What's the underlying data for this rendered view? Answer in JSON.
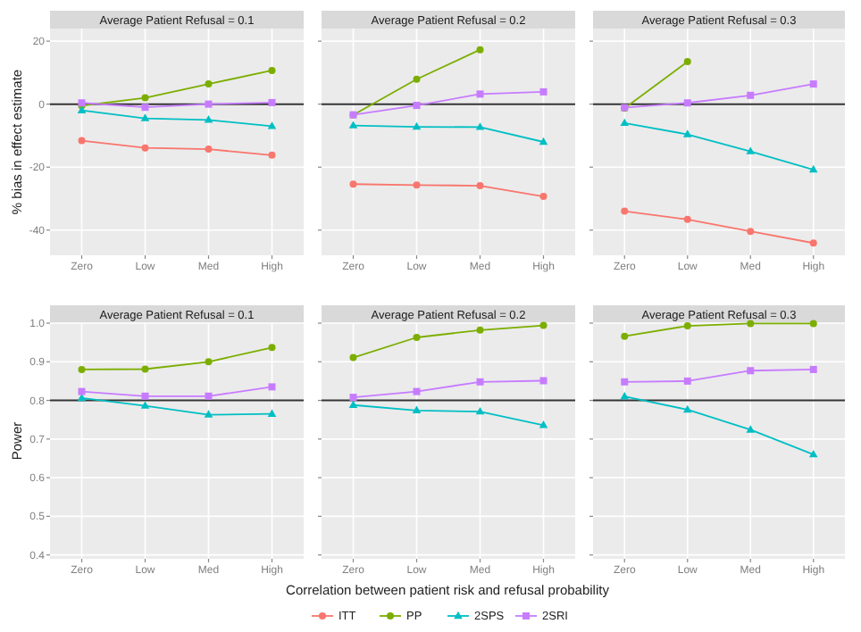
{
  "chart_data": [
    {
      "type": "line",
      "title": "Average Patient Refusal = 0.1",
      "ylabel": "% bias in effect estimate",
      "categories": [
        "Zero",
        "Low",
        "Med",
        "High"
      ],
      "ylim": [
        -48,
        24
      ],
      "yticks": [
        -40,
        -20,
        0,
        20
      ],
      "grid": true,
      "ref_lines": [
        {
          "axis": "y",
          "value": 0,
          "color": "#333333"
        }
      ],
      "series": [
        {
          "color": "#f8766d",
          "marker": "circle",
          "values": [
            -11.6,
            -13.9,
            -14.3,
            -16.2
          ]
        },
        {
          "color": "#7cae00",
          "marker": "circle",
          "values": [
            -0.5,
            2,
            6.4,
            10.7
          ]
        },
        {
          "color": "#00bfc4",
          "marker": "triangle",
          "values": [
            -2,
            -4.5,
            -5,
            -7
          ]
        },
        {
          "color": "#c77cff",
          "marker": "square",
          "values": [
            0.4,
            -1,
            0,
            0.5
          ]
        }
      ]
    },
    {
      "type": "line",
      "title": "Average Patient Refusal = 0.2",
      "categories": [
        "Zero",
        "Low",
        "Med",
        "High"
      ],
      "ylim": [
        -48,
        24
      ],
      "yticks": [
        -40,
        -20,
        0,
        20
      ],
      "grid": true,
      "tick_labels": "x",
      "ref_lines": [
        {
          "axis": "y",
          "value": 0,
          "color": "#333333"
        }
      ],
      "series": [
        {
          "color": "#f8766d",
          "marker": "circle",
          "values": [
            -25.4,
            -25.7,
            -25.9,
            -29.3
          ]
        },
        {
          "color": "#7cae00",
          "marker": "circle",
          "values": [
            -3.4,
            7.9,
            17.3,
            null
          ]
        },
        {
          "color": "#00bfc4",
          "marker": "triangle",
          "values": [
            -6.8,
            -7.2,
            -7.3,
            -12
          ]
        },
        {
          "color": "#c77cff",
          "marker": "square",
          "values": [
            -3.4,
            -0.4,
            3.2,
            3.9
          ]
        }
      ]
    },
    {
      "type": "line",
      "title": "Average Patient Refusal = 0.3",
      "categories": [
        "Zero",
        "Low",
        "Med",
        "High"
      ],
      "ylim": [
        -48,
        24
      ],
      "yticks": [
        -40,
        -20,
        0,
        20
      ],
      "grid": true,
      "tick_labels": "x",
      "ref_lines": [
        {
          "axis": "y",
          "value": 0,
          "color": "#333333"
        }
      ],
      "series": [
        {
          "color": "#f8766d",
          "marker": "circle",
          "values": [
            -34,
            -36.6,
            -40.4,
            -44.1
          ]
        },
        {
          "color": "#7cae00",
          "marker": "circle",
          "values": [
            -1.3,
            13.5,
            null,
            null
          ]
        },
        {
          "color": "#00bfc4",
          "marker": "triangle",
          "values": [
            -6,
            -9.6,
            -15,
            -20.8
          ]
        },
        {
          "color": "#c77cff",
          "marker": "square",
          "values": [
            -1.1,
            0.4,
            2.8,
            6.4
          ]
        }
      ]
    },
    {
      "type": "line",
      "title": "Average Patient Refusal = 0.1",
      "ylabel": "Power",
      "categories": [
        "Zero",
        "Low",
        "Med",
        "High"
      ],
      "ylim": [
        0.39,
        1.0
      ],
      "yticks": [
        {
          "value": 0.4,
          "label": "0.4"
        },
        {
          "value": 0.5,
          "label": "0.5"
        },
        {
          "value": 0.6,
          "label": "0.6"
        },
        {
          "value": 0.7,
          "label": "0.7"
        },
        {
          "value": 0.8,
          "label": "0.8"
        },
        {
          "value": 0.9,
          "label": "0.9"
        },
        {
          "value": 1.0,
          "label": "1.0"
        }
      ],
      "grid": true,
      "ref_lines": [
        {
          "axis": "y",
          "value": 0.8,
          "color": "#333333"
        }
      ],
      "series": [
        {
          "color": "#7cae00",
          "marker": "circle",
          "values": [
            0.88,
            0.881,
            0.9,
            0.937
          ]
        },
        {
          "color": "#00bfc4",
          "marker": "triangle",
          "values": [
            0.806,
            0.786,
            0.763,
            0.765
          ]
        },
        {
          "color": "#c77cff",
          "marker": "square",
          "values": [
            0.823,
            0.811,
            0.811,
            0.835
          ]
        }
      ]
    },
    {
      "type": "line",
      "title": "Average Patient Refusal = 0.2",
      "xlabel": "Correlation between patient risk and refusal probability",
      "categories": [
        "Zero",
        "Low",
        "Med",
        "High"
      ],
      "ylim": [
        0.39,
        1.0
      ],
      "yticks": [
        0.4,
        0.5,
        0.6,
        0.7,
        0.8,
        0.9,
        1.0
      ],
      "grid": true,
      "tick_labels": "x",
      "legend": "bottom",
      "ref_lines": [
        {
          "axis": "y",
          "value": 0.8,
          "color": "#333333"
        }
      ],
      "series": [
        {
          "name": "ITT",
          "color": "#f8766d",
          "marker": "circle",
          "values": [
            null,
            null,
            null,
            null
          ]
        },
        {
          "name": "PP",
          "color": "#7cae00",
          "marker": "circle",
          "values": [
            0.911,
            0.963,
            0.982,
            0.994
          ]
        },
        {
          "name": "2SPS",
          "color": "#00bfc4",
          "marker": "triangle",
          "values": [
            0.788,
            0.774,
            0.771,
            0.736
          ]
        },
        {
          "name": "2SRI",
          "color": "#c77cff",
          "marker": "square",
          "values": [
            0.808,
            0.823,
            0.848,
            0.851
          ]
        }
      ]
    },
    {
      "type": "line",
      "title": "Average Patient Refusal = 0.3",
      "categories": [
        "Zero",
        "Low",
        "Med",
        "High"
      ],
      "ylim": [
        0.39,
        1.0
      ],
      "yticks": [
        0.4,
        0.5,
        0.6,
        0.7,
        0.8,
        0.9,
        1.0
      ],
      "grid": true,
      "tick_labels": "x",
      "ref_lines": [
        {
          "axis": "y",
          "value": 0.8,
          "color": "#333333"
        }
      ],
      "series": [
        {
          "color": "#7cae00",
          "marker": "circle",
          "values": [
            0.966,
            0.993,
            0.999,
            0.999
          ]
        },
        {
          "color": "#00bfc4",
          "marker": "triangle",
          "values": [
            0.81,
            0.776,
            0.724,
            0.66
          ]
        },
        {
          "color": "#c77cff",
          "marker": "square",
          "values": [
            0.848,
            0.85,
            0.877,
            0.88
          ]
        }
      ]
    }
  ]
}
